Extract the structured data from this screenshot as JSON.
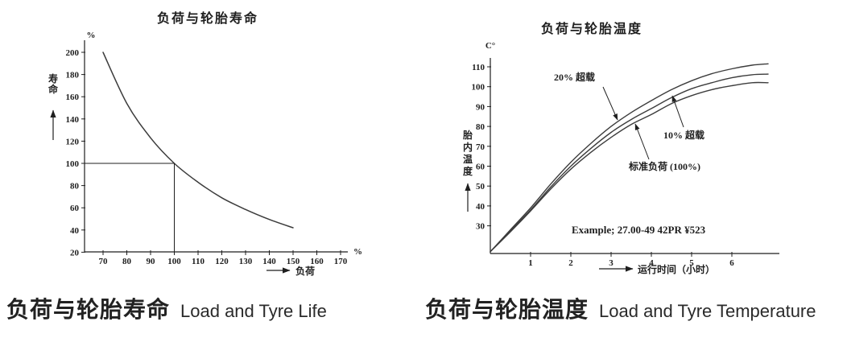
{
  "colors": {
    "ink": "#1f1f1f",
    "curve": "#3c3c3c",
    "background": "#ffffff"
  },
  "figures": [
    {
      "caption_zh": "负荷与轮胎寿命",
      "caption_en": "Load and Tyre Life"
    },
    {
      "caption_zh": "负荷与轮胎温度",
      "caption_en": "Load and Tyre Temperature"
    }
  ],
  "chart_data": [
    {
      "type": "line",
      "title": "负荷与轮胎寿命",
      "xlabel": "负荷",
      "ylabel": "寿命",
      "x_unit": "%",
      "y_unit": "%",
      "xlim": [
        62,
        178
      ],
      "ylim": [
        20,
        212
      ],
      "grid": false,
      "legend": "none",
      "x_ticks": [
        70,
        80,
        90,
        100,
        110,
        120,
        130,
        140,
        150,
        160,
        170
      ],
      "y_ticks": [
        20,
        40,
        60,
        80,
        100,
        120,
        140,
        160,
        180,
        200
      ],
      "x": [
        70,
        80,
        90,
        100,
        110,
        120,
        130,
        140,
        150
      ],
      "series": [
        {
          "name": "寿命",
          "values": [
            200,
            154,
            123,
            100,
            83,
            69,
            58.5,
            49.5,
            42
          ]
        }
      ],
      "reference_point": {
        "x": 100,
        "y": 100
      }
    },
    {
      "type": "line",
      "title": "负荷与轮胎温度",
      "xlabel": "运行时间（小时）",
      "ylabel": "胎内温度",
      "x_unit": "",
      "y_unit": "C°",
      "xlim": [
        0,
        7.2
      ],
      "ylim": [
        17,
        116
      ],
      "grid": false,
      "legend": "inline-labels",
      "x_ticks": [
        1,
        2,
        3,
        4,
        5,
        6
      ],
      "y_ticks": [
        30,
        40,
        50,
        60,
        70,
        80,
        90,
        100,
        110
      ],
      "x": [
        0,
        0.5,
        1,
        1.5,
        2,
        2.5,
        3,
        3.5,
        4,
        4.5,
        5,
        5.5,
        6,
        6.5,
        6.9
      ],
      "series": [
        {
          "name": "20% 超载",
          "values": [
            17,
            28,
            39,
            51,
            62,
            71.5,
            80,
            87,
            93,
            98.5,
            103,
            106.5,
            109,
            110.8,
            111.5
          ]
        },
        {
          "name": "10% 超载",
          "values": [
            17,
            27.5,
            38,
            49.5,
            60,
            69,
            77,
            83.5,
            89,
            94.5,
            99,
            102,
            104.5,
            106,
            106.3
          ]
        },
        {
          "name": "标准负荷 (100%)",
          "values": [
            17,
            27,
            37.5,
            48.5,
            58.5,
            67,
            74.5,
            81,
            86,
            91.5,
            95.5,
            98.5,
            100.5,
            102,
            102
          ]
        }
      ],
      "annotation": "Example; 27.00-49  42PR   ¥523"
    }
  ]
}
